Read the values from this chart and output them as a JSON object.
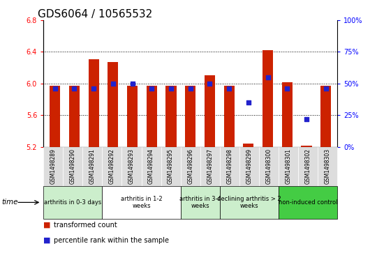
{
  "title": "GDS6064 / 10565532",
  "samples": [
    "GSM1498289",
    "GSM1498290",
    "GSM1498291",
    "GSM1498292",
    "GSM1498293",
    "GSM1498294",
    "GSM1498295",
    "GSM1498296",
    "GSM1498297",
    "GSM1498298",
    "GSM1498299",
    "GSM1498300",
    "GSM1498301",
    "GSM1498302",
    "GSM1498303"
  ],
  "bar_values": [
    5.97,
    5.97,
    6.31,
    6.27,
    5.97,
    5.97,
    5.97,
    5.97,
    6.1,
    5.97,
    5.24,
    6.42,
    6.02,
    5.21,
    5.97
  ],
  "bar_base": 5.2,
  "blue_values": [
    46,
    46,
    46,
    50,
    50,
    46,
    46,
    46,
    50,
    46,
    35,
    55,
    46,
    22,
    46
  ],
  "ylim_left": [
    5.2,
    6.8
  ],
  "ylim_right": [
    0,
    100
  ],
  "yticks_left": [
    5.2,
    5.6,
    6.0,
    6.4,
    6.8
  ],
  "yticks_right": [
    0,
    25,
    50,
    75,
    100
  ],
  "bar_color": "#CC2200",
  "blue_color": "#2222CC",
  "groups": [
    {
      "label": "arthritis in 0-3 days",
      "start": 0,
      "end": 3,
      "color": "#CCEECC"
    },
    {
      "label": "arthritis in 1-2\nweeks",
      "start": 3,
      "end": 7,
      "color": "#FFFFFF"
    },
    {
      "label": "arthritis in 3-4\nweeks",
      "start": 7,
      "end": 9,
      "color": "#CCEECC"
    },
    {
      "label": "declining arthritis > 2\nweeks",
      "start": 9,
      "end": 12,
      "color": "#CCEECC"
    },
    {
      "label": "non-induced control",
      "start": 12,
      "end": 15,
      "color": "#44CC44"
    }
  ],
  "title_fontsize": 11,
  "tick_fontsize": 7,
  "bar_width": 0.55,
  "bar_color_legend": "#CC2200",
  "blue_color_legend": "#2222CC"
}
